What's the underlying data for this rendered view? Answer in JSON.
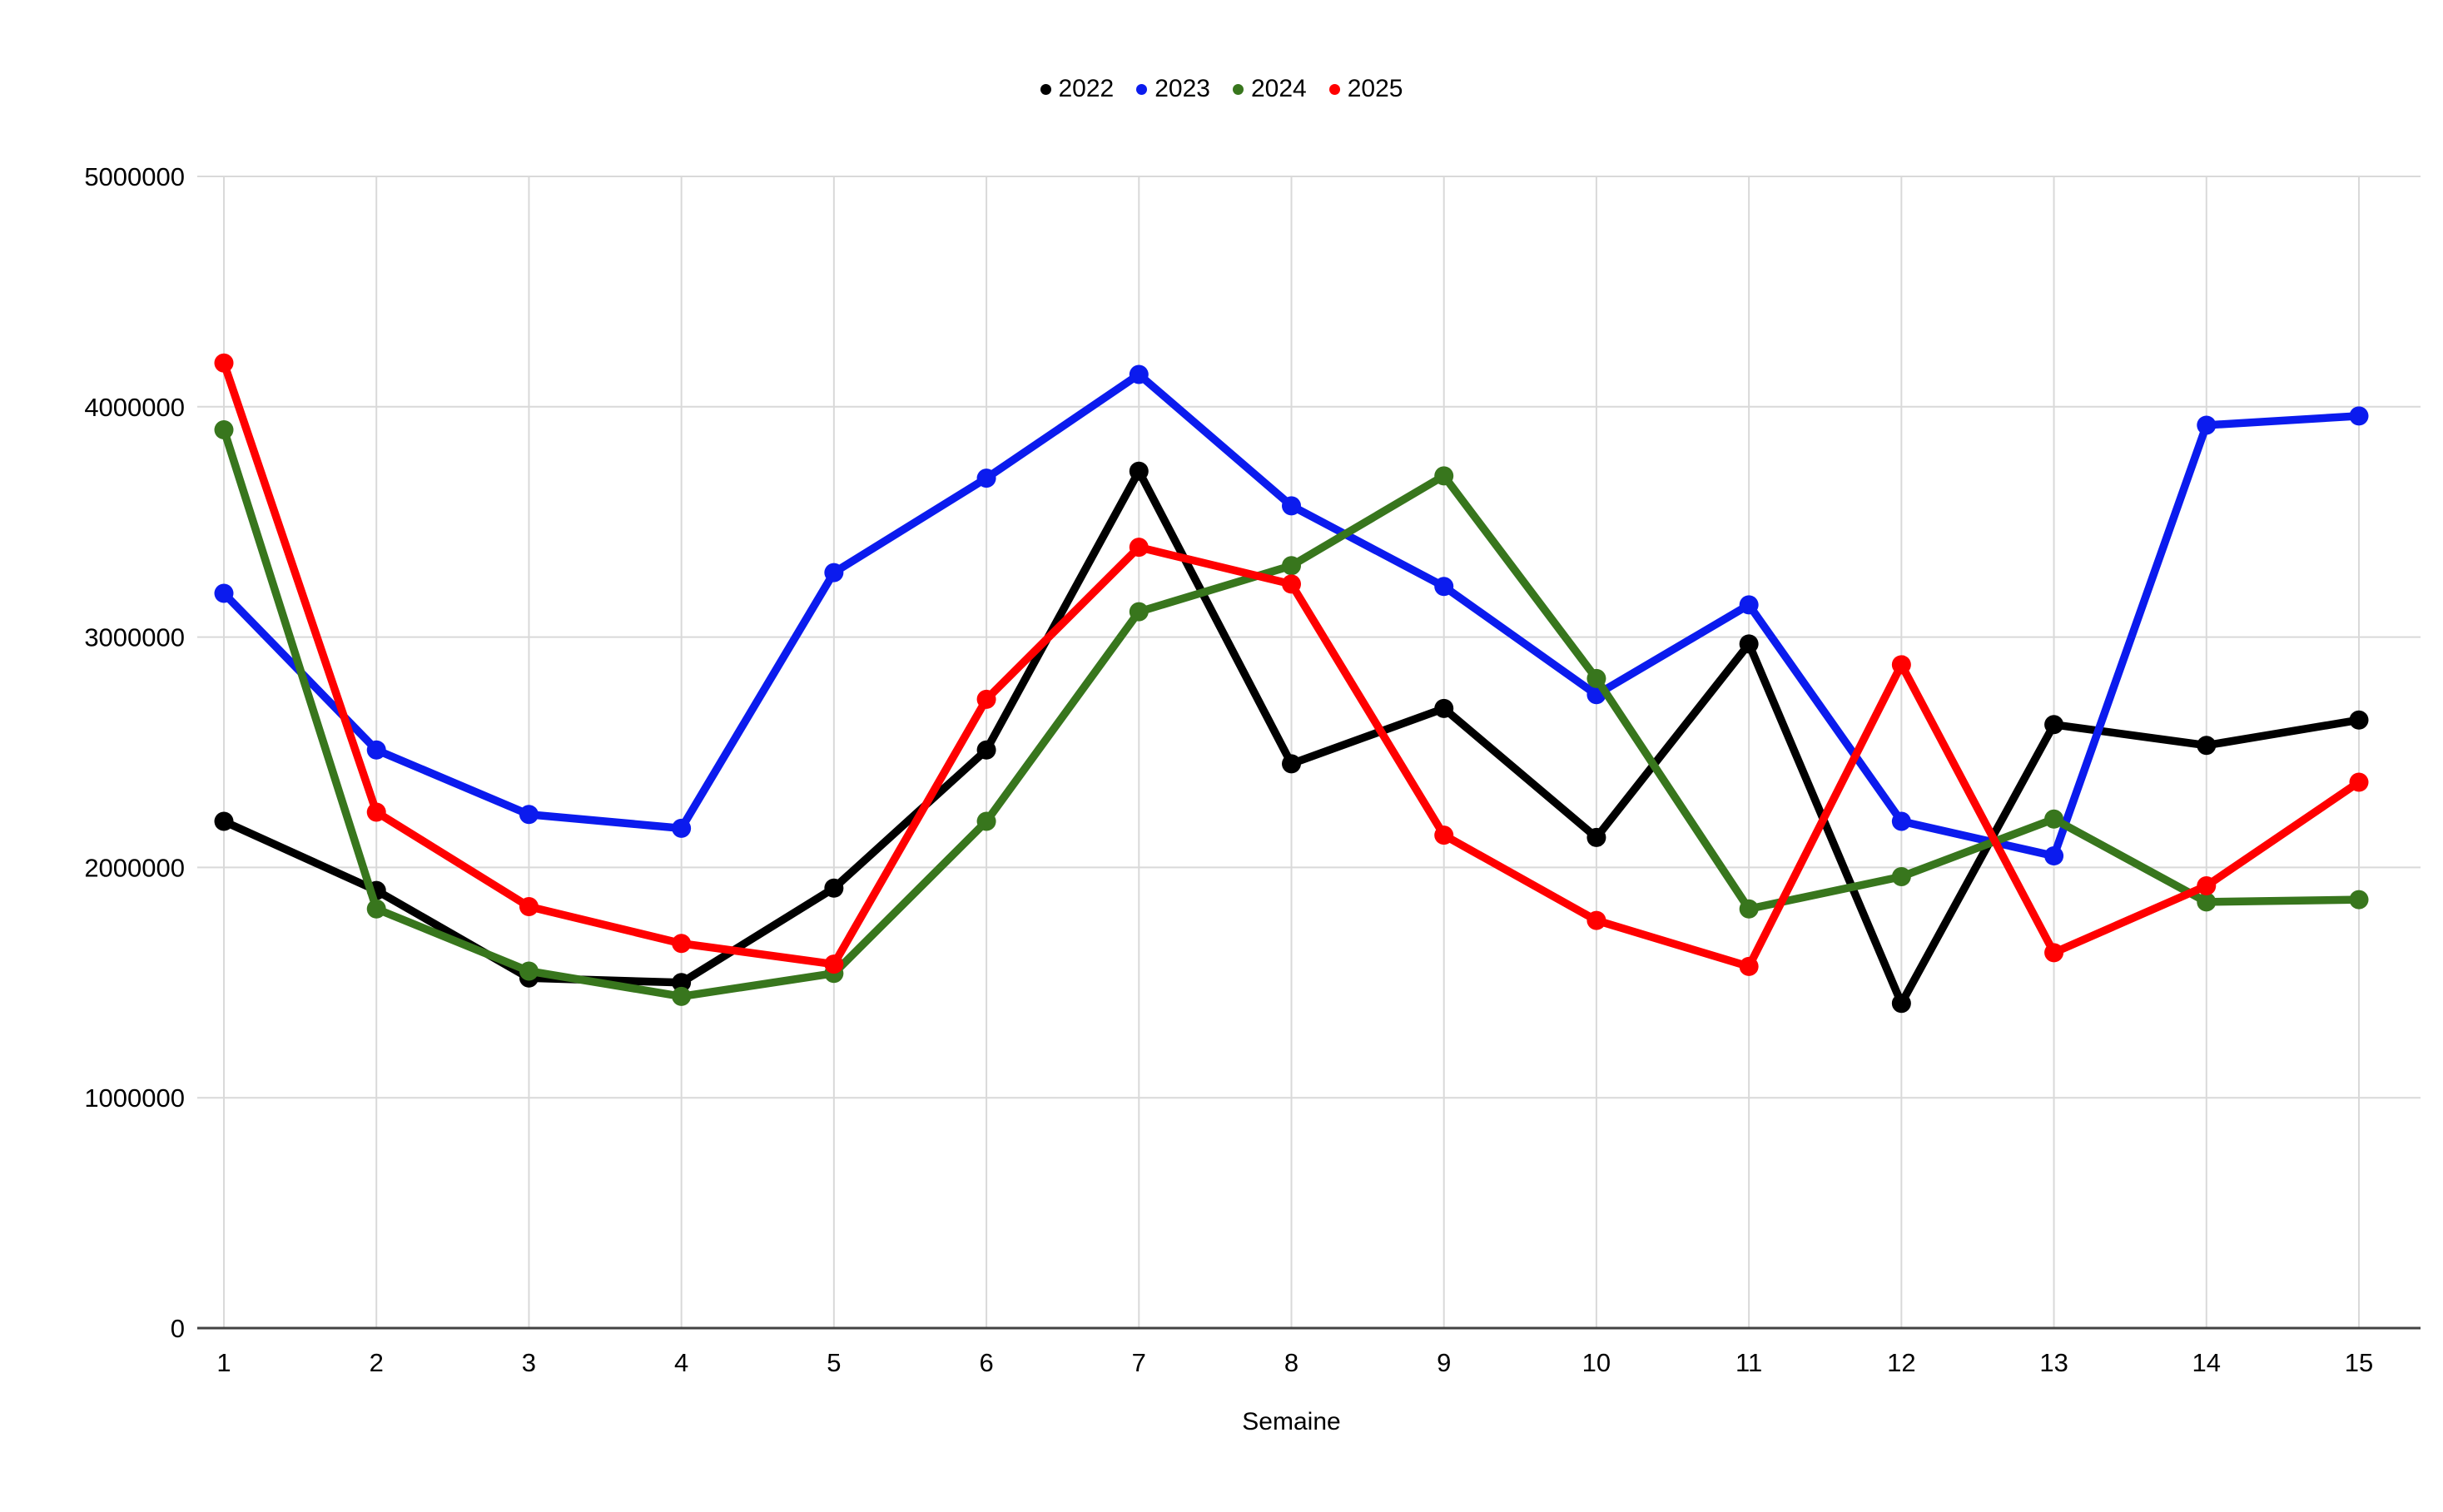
{
  "chart_data": {
    "type": "line",
    "title": "",
    "xlabel": "Semaine",
    "ylabel": "",
    "categories": [
      "1",
      "2",
      "3",
      "4",
      "5",
      "6",
      "7",
      "8",
      "9",
      "10",
      "11",
      "12",
      "13",
      "14",
      "15"
    ],
    "series": [
      {
        "name": "2022",
        "color": "#000000",
        "values": [
          2200000,
          1900000,
          1520000,
          1500000,
          1910000,
          2510000,
          3720000,
          2450000,
          2690000,
          2130000,
          2970000,
          1410000,
          2620000,
          2530000,
          2640000
        ]
      },
      {
        "name": "2023",
        "color": "#0b1bee",
        "values": [
          3190000,
          2510000,
          2230000,
          2170000,
          3280000,
          3690000,
          4140000,
          3570000,
          3220000,
          2750000,
          3140000,
          2200000,
          2050000,
          3920000,
          3960000
        ]
      },
      {
        "name": "2024",
        "color": "#38761d",
        "values": [
          3900000,
          1820000,
          1550000,
          1440000,
          1540000,
          2200000,
          3110000,
          3310000,
          3700000,
          2820000,
          1820000,
          1960000,
          2210000,
          1850000,
          1860000
        ]
      },
      {
        "name": "2025",
        "color": "#ff0000",
        "values": [
          4190000,
          2240000,
          1830000,
          1670000,
          1580000,
          2730000,
          3390000,
          3230000,
          2140000,
          1770000,
          1570000,
          2880000,
          1630000,
          1920000,
          2370000
        ]
      }
    ],
    "ylim": [
      0,
      5000000
    ],
    "ytick_step": 1000000,
    "ytick_labels": [
      "0",
      "1000000",
      "2000000",
      "3000000",
      "4000000",
      "5000000"
    ],
    "grid": true,
    "legend_position": "top",
    "axis_color": "#424242",
    "gridline_color": "#d9d9d9",
    "tick_label_color": "#000000"
  }
}
